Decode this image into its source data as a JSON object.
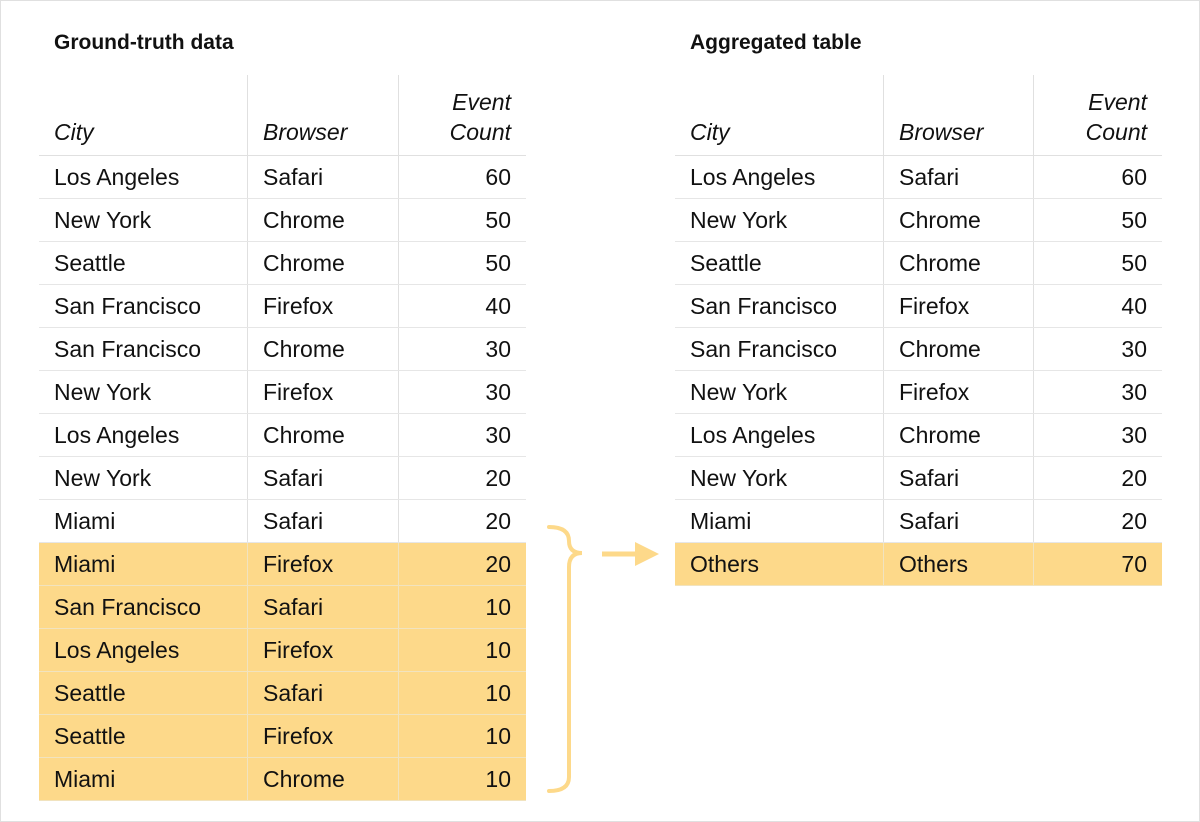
{
  "left": {
    "title": "Ground-truth data",
    "headers": [
      "City",
      "Browser",
      "Event Count"
    ],
    "rows": [
      {
        "city": "Los Angeles",
        "browser": "Safari",
        "count": "60",
        "highlight": false
      },
      {
        "city": "New York",
        "browser": "Chrome",
        "count": "50",
        "highlight": false
      },
      {
        "city": "Seattle",
        "browser": "Chrome",
        "count": "50",
        "highlight": false
      },
      {
        "city": "San Francisco",
        "browser": "Firefox",
        "count": "40",
        "highlight": false
      },
      {
        "city": "San Francisco",
        "browser": "Chrome",
        "count": "30",
        "highlight": false
      },
      {
        "city": "New York",
        "browser": "Firefox",
        "count": "30",
        "highlight": false
      },
      {
        "city": "Los Angeles",
        "browser": "Chrome",
        "count": "30",
        "highlight": false
      },
      {
        "city": "New York",
        "browser": "Safari",
        "count": "20",
        "highlight": false
      },
      {
        "city": "Miami",
        "browser": "Safari",
        "count": "20",
        "highlight": false
      },
      {
        "city": "Miami",
        "browser": "Firefox",
        "count": "20",
        "highlight": true
      },
      {
        "city": "San Francisco",
        "browser": "Safari",
        "count": "10",
        "highlight": true
      },
      {
        "city": "Los Angeles",
        "browser": "Firefox",
        "count": "10",
        "highlight": true
      },
      {
        "city": "Seattle",
        "browser": "Safari",
        "count": "10",
        "highlight": true
      },
      {
        "city": "Seattle",
        "browser": "Firefox",
        "count": "10",
        "highlight": true
      },
      {
        "city": "Miami",
        "browser": "Chrome",
        "count": "10",
        "highlight": true
      }
    ]
  },
  "right": {
    "title": "Aggregated table",
    "headers": [
      "City",
      "Browser",
      "Event Count"
    ],
    "rows": [
      {
        "city": "Los Angeles",
        "browser": "Safari",
        "count": "60",
        "highlight": false
      },
      {
        "city": "New York",
        "browser": "Chrome",
        "count": "50",
        "highlight": false
      },
      {
        "city": "Seattle",
        "browser": "Chrome",
        "count": "50",
        "highlight": false
      },
      {
        "city": "San Francisco",
        "browser": "Firefox",
        "count": "40",
        "highlight": false
      },
      {
        "city": "San Francisco",
        "browser": "Chrome",
        "count": "30",
        "highlight": false
      },
      {
        "city": "New York",
        "browser": "Firefox",
        "count": "30",
        "highlight": false
      },
      {
        "city": "Los Angeles",
        "browser": "Chrome",
        "count": "30",
        "highlight": false
      },
      {
        "city": "New York",
        "browser": "Safari",
        "count": "20",
        "highlight": false
      },
      {
        "city": "Miami",
        "browser": "Safari",
        "count": "20",
        "highlight": false
      },
      {
        "city": "Others",
        "browser": "Others",
        "count": "70",
        "highlight": true
      }
    ]
  },
  "colors": {
    "highlight": "#fdd98a",
    "connector": "#fdd98a"
  }
}
